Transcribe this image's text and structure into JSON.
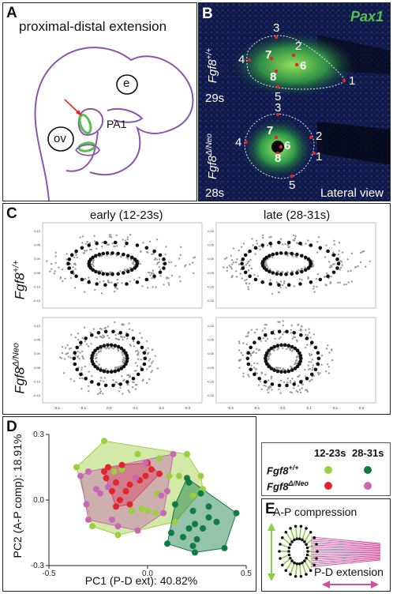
{
  "panel_a": {
    "letter": "A",
    "title": "proximal-distal extension",
    "labels": {
      "eye": "e",
      "otic": "ov",
      "arch": "PA1"
    }
  },
  "panel_b": {
    "letter": "B",
    "marker": "Pax1",
    "genotypes": [
      {
        "gene": "Fgf8",
        "sup": "+/+",
        "stage": "29s"
      },
      {
        "gene": "Fgf8",
        "sup": "Δ/Neo",
        "stage": "28s"
      }
    ],
    "landmarks": [
      "1",
      "2",
      "3",
      "4",
      "5",
      "6",
      "7",
      "8"
    ],
    "view": "Lateral view",
    "colors": {
      "background": "#0c1330",
      "signal": "#56c14a"
    }
  },
  "panel_c": {
    "letter": "C",
    "columns": [
      "early (12-23s)",
      "late (28-31s)"
    ],
    "rows": [
      {
        "gene": "Fgf8",
        "sup": "+/+"
      },
      {
        "gene": "Fgf8",
        "sup": "Δ/Neo"
      }
    ],
    "x_ticks": [
      "-0.2",
      "-0.1",
      "0.0",
      "0.1",
      "0.2",
      "0.3"
    ],
    "y_ticks": [
      "0.10",
      "0.05",
      "0.00",
      "-0.05",
      "-0.10",
      "-0.15"
    ]
  },
  "panel_e": {
    "letter": "E",
    "labels": {
      "ap": "A-P compression",
      "pd": "P-D extension"
    },
    "colors": {
      "wildtype": "#8ccd48",
      "mutant": "#d24e9e"
    }
  },
  "chart_data": {
    "type": "scatter",
    "title": "D",
    "xlabel": "PC1 (P-D ext): 40.82%",
    "ylabel": "PC2 (A-P comp): 18.91%",
    "xlim": [
      -0.5,
      0.5
    ],
    "ylim": [
      -0.3,
      0.3
    ],
    "x_ticks": [
      "-0.5",
      "0.0",
      "0.5"
    ],
    "y_ticks": [
      "-0.3",
      "0.0",
      "0.3"
    ],
    "legend": {
      "placement": "right",
      "headers": [
        "12-23s",
        "28-31s"
      ],
      "rows": [
        {
          "gene": "Fgf8",
          "sup": "+/+",
          "colors": [
            "#9ccf3e",
            "#127a44"
          ]
        },
        {
          "gene": "Fgf8",
          "sup": "Δ/Neo",
          "colors": [
            "#e0262a",
            "#c868b4"
          ]
        }
      ]
    },
    "series": [
      {
        "name": "Fgf8+/+ 12-23s",
        "color": "#9ccf3e",
        "x": [
          -0.22,
          -0.05,
          0.2,
          0.06,
          -0.36,
          -0.13,
          -0.17,
          0.11,
          0.16,
          0.27,
          0.23,
          0.05,
          0.28,
          -0.03,
          0.0,
          -0.28,
          -0.15,
          -0.08,
          0.04,
          0.14
        ],
        "y": [
          0.27,
          0.21,
          0.21,
          0.19,
          0.15,
          0.14,
          0.13,
          0.11,
          0.11,
          0.11,
          0.02,
          0.03,
          0.05,
          -0.04,
          -0.05,
          -0.12,
          -0.16,
          -0.05,
          -0.06,
          -0.1
        ]
      },
      {
        "name": "Fgf8+/+ 28-31s",
        "color": "#127a44",
        "x": [
          0.21,
          0.14,
          0.23,
          0.31,
          0.45,
          0.31,
          0.35,
          0.24,
          0.21,
          0.28,
          0.25,
          0.23,
          0.1,
          0.12,
          0.18,
          0.39,
          0.24,
          0.27,
          0.2
        ],
        "y": [
          0.08,
          -0.02,
          -0.05,
          -0.03,
          -0.06,
          -0.08,
          -0.1,
          -0.11,
          -0.13,
          -0.13,
          -0.18,
          -0.21,
          -0.2,
          -0.15,
          -0.17,
          -0.22,
          -0.24,
          0.03,
          0.1
        ]
      },
      {
        "name": "Fgf8Δ/Neo 12-23s",
        "color": "#e0262a",
        "x": [
          -0.22,
          -0.2,
          -0.16,
          -0.11,
          -0.14,
          -0.09,
          0.06,
          -0.04,
          -0.06,
          -0.01,
          -0.16,
          -0.21,
          -0.13,
          0.0,
          0.02,
          -0.09,
          -0.18
        ],
        "y": [
          0.13,
          0.15,
          0.08,
          0.04,
          0.0,
          0.07,
          0.12,
          0.09,
          0.1,
          0.11,
          -0.03,
          0.1,
          0.16,
          0.17,
          0.14,
          -0.02,
          0.04
        ]
      },
      {
        "name": "Fgf8Δ/Neo 28-31s",
        "color": "#c868b4",
        "x": [
          0.13,
          -0.01,
          -0.06,
          -0.2,
          -0.24,
          -0.3,
          -0.3,
          -0.34,
          -0.15,
          -0.05,
          0.07,
          0.08,
          0.1,
          -0.31,
          -0.18,
          -0.26
        ],
        "y": [
          0.21,
          0.17,
          0.1,
          0.06,
          0.03,
          -0.09,
          0.13,
          0.11,
          -0.12,
          -0.14,
          0.02,
          -0.06,
          0.04,
          -0.02,
          -0.09,
          0.05
        ]
      }
    ]
  }
}
